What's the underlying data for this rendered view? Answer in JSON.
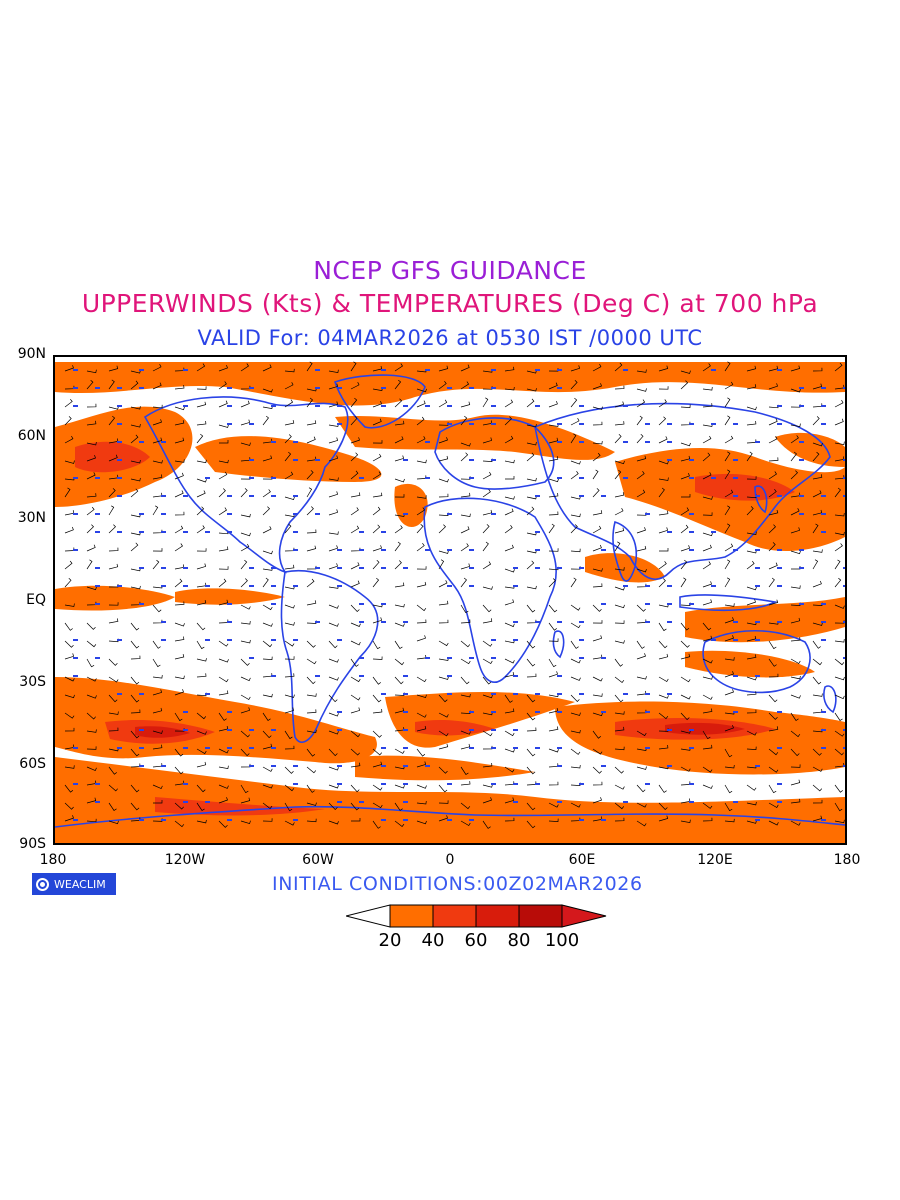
{
  "titles": {
    "line1": "NCEP GFS GUIDANCE",
    "line2": "UPPERWINDS (Kts) & TEMPERATURES (Deg C) at 700 hPa",
    "line3": "VALID For: 04MAR2026 at 0530 IST /0000 UTC"
  },
  "axes": {
    "y_labels": [
      "90N",
      "60N",
      "30N",
      "EQ",
      "30S",
      "60S",
      "90S"
    ],
    "x_labels": [
      "180",
      "120W",
      "60W",
      "0",
      "60E",
      "120E",
      "180"
    ]
  },
  "map": {
    "projection": "cylindrical equidistant",
    "extent": {
      "lon": [
        -180,
        180
      ],
      "lat": [
        -90,
        90
      ]
    },
    "layers": [
      "wind-speed-shading",
      "coastlines",
      "wind-barbs",
      "temperature-labels"
    ],
    "colors": {
      "coastline": "#2a43e6",
      "temperature_text": "#2a43e6",
      "barb": "#000000",
      "shade_20_40": "#ff6e00",
      "shade_40_60": "#f03a10",
      "shade_60_80": "#d81c0c",
      "shade_80_100": "#b80c08",
      "shade_100_plus": "#d4181c"
    }
  },
  "logo": {
    "text": "WEACLIM"
  },
  "initial_conditions": "INITIAL CONDITIONS:00Z02MAR2026",
  "legend": {
    "ticks": [
      "20",
      "40",
      "60",
      "80",
      "100"
    ],
    "colors": [
      "#ffffff",
      "#ff6e00",
      "#f03a10",
      "#d81c0c",
      "#b80c08",
      "#d4181c"
    ]
  }
}
